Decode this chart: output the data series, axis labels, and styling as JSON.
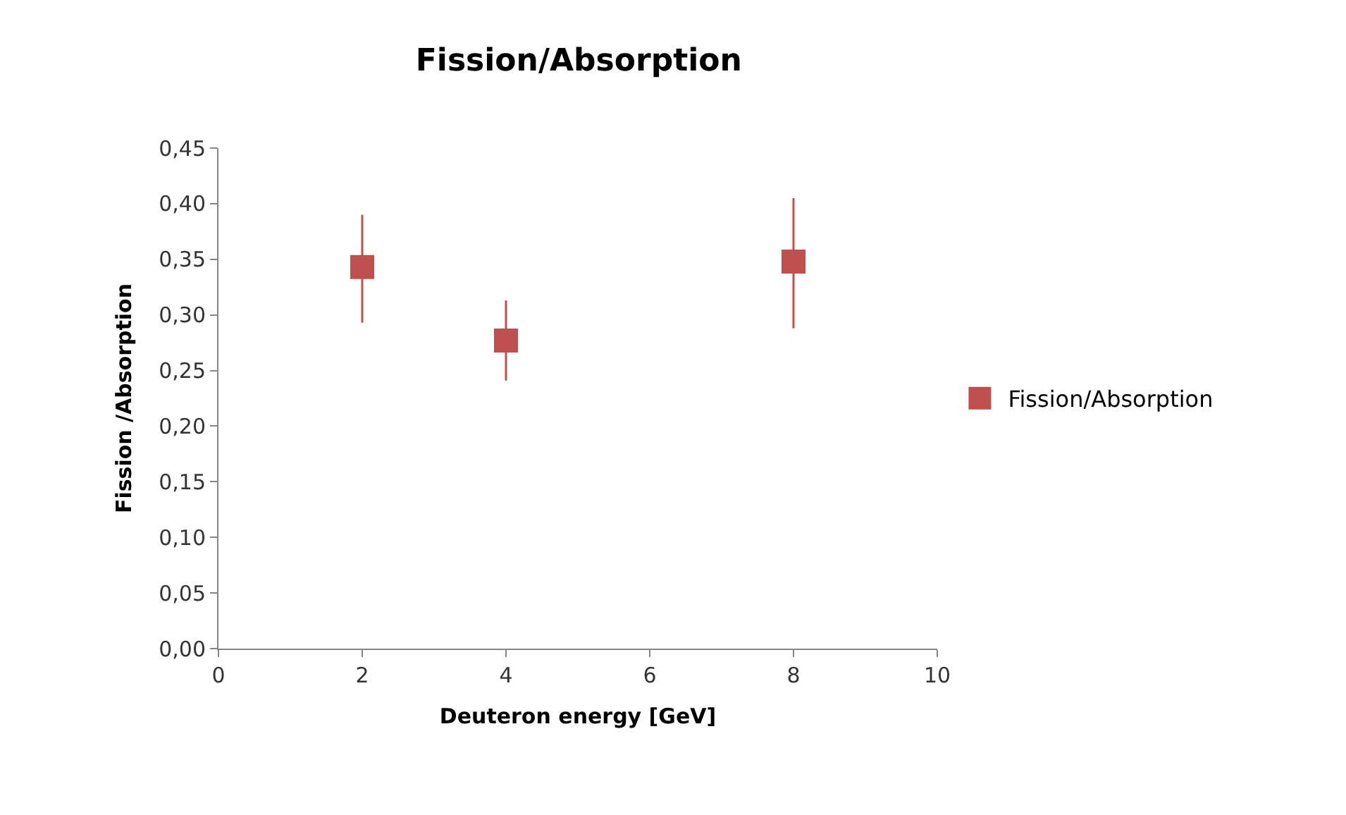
{
  "chart_data": {
    "type": "scatter",
    "title": "Fission/Absorption",
    "xlabel": "Deuteron energy [GeV]",
    "ylabel": "Fission /Absorption",
    "x": [
      2,
      4,
      8
    ],
    "series": [
      {
        "name": "Fission/Absorption",
        "color": "#c0504d",
        "values": [
          0.343,
          0.277,
          0.348
        ],
        "errors": [
          [
            0.293,
            0.39
          ],
          [
            0.241,
            0.313
          ],
          [
            0.288,
            0.405
          ]
        ]
      }
    ],
    "xlim": [
      0,
      10
    ],
    "xticks": [
      0,
      2,
      4,
      6,
      8,
      10
    ],
    "ylim": [
      0,
      0.45
    ],
    "yticks": [
      {
        "value": 0,
        "label": "0,00"
      },
      {
        "value": 0.05,
        "label": "0,05"
      },
      {
        "value": 0.1,
        "label": "0,10"
      },
      {
        "value": 0.15,
        "label": "0,15"
      },
      {
        "value": 0.2,
        "label": "0,20"
      },
      {
        "value": 0.25,
        "label": "0,25"
      },
      {
        "value": 0.3,
        "label": "0,30"
      },
      {
        "value": 0.35,
        "label": "0,35"
      },
      {
        "value": 0.4,
        "label": "0,40"
      },
      {
        "value": 0.45,
        "label": "0,45"
      }
    ],
    "legend": "right",
    "marker": "square"
  }
}
